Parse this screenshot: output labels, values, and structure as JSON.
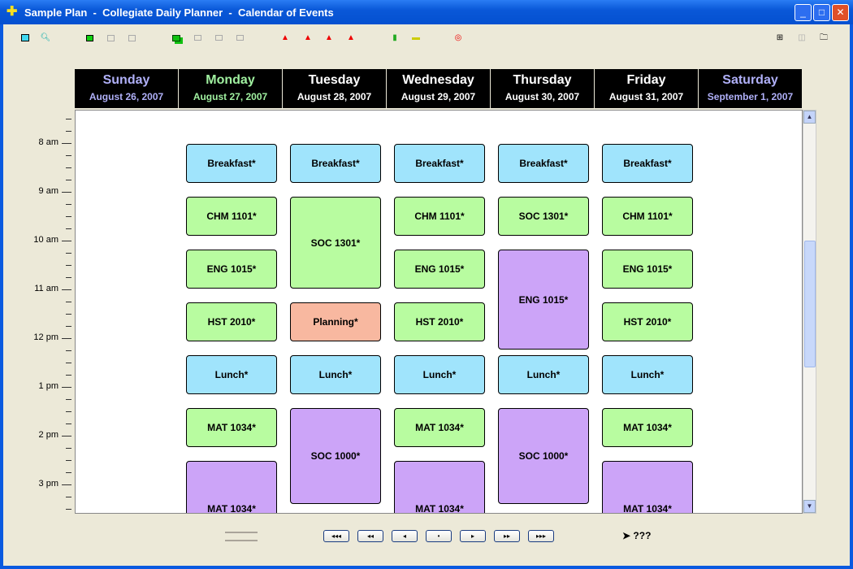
{
  "window": {
    "title": "Sample Plan  -  Collegiate Daily Planner  -  Calendar of Events",
    "minimize": "_",
    "maximize": "□",
    "close": "✕"
  },
  "toolbar": [
    "view-icon",
    "zoom-icon",
    "add-item-icon",
    "item-disabled-icon",
    "item-disabled-icon",
    "copy-icon",
    "copy-disabled-icon",
    "copy-disabled-icon",
    "copy-disabled-icon",
    "alarm-icon",
    "alarm-left-icon",
    "alarm-right-icon",
    "alarm-cycle-icon",
    "new-document-icon",
    "print-icon",
    "help-lifebuoy-icon",
    "grid-icon",
    "columns-icon",
    "folder-icon"
  ],
  "days": [
    {
      "name": "Sunday",
      "date": "August 26, 2007",
      "color": "#b0b0f8"
    },
    {
      "name": "Monday",
      "date": "August 27, 2007",
      "color": "#a0f0a0"
    },
    {
      "name": "Tuesday",
      "date": "August 28, 2007",
      "color": "#ffffff"
    },
    {
      "name": "Wednesday",
      "date": "August 29, 2007",
      "color": "#ffffff"
    },
    {
      "name": "Thursday",
      "date": "August 30, 2007",
      "color": "#ffffff"
    },
    {
      "name": "Friday",
      "date": "August 31, 2007",
      "color": "#ffffff"
    },
    {
      "name": "Saturday",
      "date": "September 1, 2007",
      "color": "#b0b0f8"
    }
  ],
  "hours": [
    "8 am",
    "9 am",
    "10 am",
    "11 am",
    "12 pm",
    "1 pm",
    "2 pm",
    "3 pm"
  ],
  "events": {
    "monday": [
      "Breakfast*",
      "CHM 1101*",
      "ENG 1015*",
      "HST 2010*",
      "Lunch*",
      "MAT 1034*",
      "MAT 1034*"
    ],
    "tuesday": [
      "Breakfast*",
      "SOC 1301*",
      "Planning*",
      "Lunch*",
      "SOC 1000*"
    ],
    "wednesday": [
      "Breakfast*",
      "CHM 1101*",
      "ENG 1015*",
      "HST 2010*",
      "Lunch*",
      "MAT 1034*",
      "MAT 1034*"
    ],
    "thursday": [
      "Breakfast*",
      "SOC 1301*",
      "ENG 1015*",
      "Lunch*",
      "SOC 1000*"
    ],
    "friday": [
      "Breakfast*",
      "CHM 1101*",
      "ENG 1015*",
      "HST 2010*",
      "Lunch*",
      "MAT 1034*",
      "MAT 1034*"
    ]
  },
  "colors": {
    "blue": "#a0e4fc",
    "green": "#b8fca0",
    "purple": "#cca4f8",
    "salmon": "#f8b8a0"
  },
  "nav": {
    "first": "◂◂◂",
    "prev_week": "◂◂",
    "prev": "◂",
    "today": "•",
    "next": "▸",
    "next_week": "▸▸",
    "last": "▸▸▸"
  },
  "status": "???"
}
